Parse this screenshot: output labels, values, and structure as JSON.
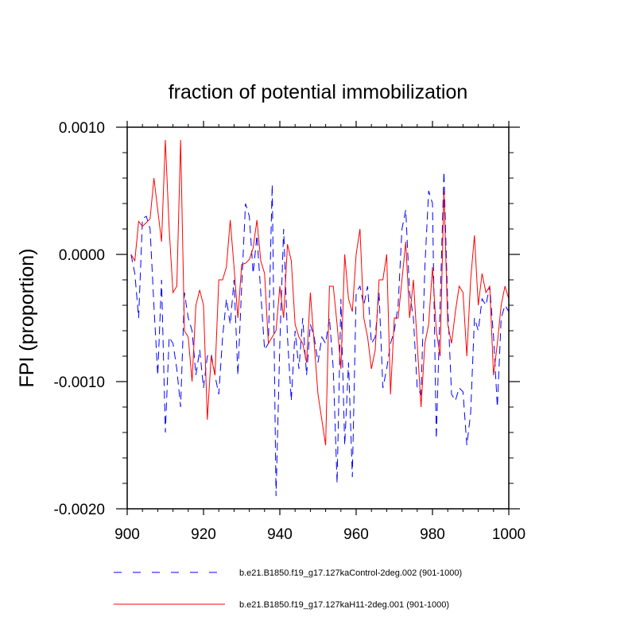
{
  "chart_data": {
    "type": "line",
    "title": "fraction of potential immobilization",
    "ylabel": "FPI  (proportion)",
    "xlabel": "",
    "xlim": [
      900,
      1000
    ],
    "ylim": [
      -0.002,
      0.001
    ],
    "x_ticks": [
      900,
      920,
      940,
      960,
      980,
      1000
    ],
    "x_tick_labels": [
      "900",
      "920",
      "940",
      "960",
      "980",
      "1000"
    ],
    "y_ticks": [
      -0.002,
      -0.001,
      0.0,
      0.001
    ],
    "y_tick_labels": [
      "-0.0020",
      "-0.0010",
      "0.0000",
      "0.0010"
    ],
    "grid": false,
    "legend_position": "bottom",
    "x": [
      901,
      902,
      903,
      904,
      905,
      906,
      907,
      908,
      909,
      910,
      911,
      912,
      913,
      914,
      915,
      916,
      917,
      918,
      919,
      920,
      921,
      922,
      923,
      924,
      925,
      926,
      927,
      928,
      929,
      930,
      931,
      932,
      933,
      934,
      935,
      936,
      937,
      938,
      939,
      940,
      941,
      942,
      943,
      944,
      945,
      946,
      947,
      948,
      949,
      950,
      951,
      952,
      953,
      954,
      955,
      956,
      957,
      958,
      959,
      960,
      961,
      962,
      963,
      964,
      965,
      966,
      967,
      968,
      969,
      970,
      971,
      972,
      973,
      974,
      975,
      976,
      977,
      978,
      979,
      980,
      981,
      982,
      983,
      984,
      985,
      986,
      987,
      988,
      989,
      990,
      991,
      992,
      993,
      994,
      995,
      996,
      997,
      998,
      999,
      1000
    ],
    "series": [
      {
        "name": "b.e21.B1850.f19_g17.127kaControl-2deg.002 (901-1000)",
        "color": "#0000ff",
        "style": "dashed",
        "values": [
          0.0,
          -0.00015,
          -0.0005,
          0.00028,
          0.0003,
          0.0002,
          -0.0004,
          -0.00095,
          -0.0002,
          -0.0014,
          -0.00065,
          -0.0007,
          -0.0009,
          -0.0012,
          -0.0003,
          -0.0005,
          -0.0006,
          -0.00095,
          -0.00075,
          -0.00105,
          -0.0008,
          -0.00078,
          -0.00095,
          -0.0011,
          -0.00065,
          -0.00035,
          -0.00055,
          -0.0002,
          -0.00095,
          -0.00025,
          0.0004,
          0.0003,
          -0.00015,
          0.00015,
          -0.0003,
          -0.00075,
          -0.0007,
          0.00055,
          -0.0019,
          -0.0007,
          0.0002,
          -0.00065,
          -0.00115,
          -0.0006,
          -0.0009,
          -0.0005,
          -0.00095,
          -0.00055,
          -0.00065,
          -0.00085,
          -0.00065,
          -0.0007,
          -0.0005,
          -0.0009,
          -0.0018,
          -0.00035,
          -0.0015,
          -0.00085,
          -0.00175,
          -0.0003,
          -0.00025,
          -0.0004,
          -0.00025,
          -0.0007,
          -0.00065,
          -0.0003,
          -0.00105,
          -0.0009,
          -0.0007,
          -0.0006,
          -0.0004,
          0.0002,
          0.00035,
          -0.0003,
          -0.0005,
          -0.00105,
          -0.0011,
          -0.0001,
          0.0005,
          0.0004,
          -0.00145,
          -0.0004,
          0.00065,
          -0.0004,
          -0.0011,
          -0.00115,
          -0.00105,
          -0.00108,
          -0.0015,
          -0.00125,
          -0.0005,
          -0.0006,
          -0.00035,
          -0.0004,
          -0.00025,
          -0.00065,
          -0.0012,
          -0.0005,
          -0.0004,
          -0.00045
        ]
      },
      {
        "name": "b.e21.B1850.f19_g17.127kaH11-2deg.001 (901-1000)",
        "color": "#ff0000",
        "style": "solid",
        "values": [
          0.0,
          -5e-05,
          0.00026,
          0.00022,
          0.00025,
          0.00028,
          0.0006,
          0.00035,
          0.0001,
          0.0009,
          0.0002,
          -0.0003,
          -0.00025,
          0.0009,
          -0.0006,
          -0.00065,
          -0.001,
          -0.0004,
          -0.00028,
          -0.0004,
          -0.0013,
          -0.0008,
          -0.00095,
          -0.0002,
          -0.0002,
          -0.0001,
          0.00027,
          -0.0001,
          -0.0005,
          -8e-05,
          -7e-05,
          -4e-05,
          5e-05,
          0.00027,
          -5e-05,
          -0.00015,
          -0.0007,
          -0.00065,
          -0.0006,
          -0.00025,
          -0.0005,
          8e-05,
          -5e-05,
          -0.00055,
          -0.00065,
          -0.0007,
          -0.00085,
          -0.0003,
          -0.0007,
          -0.0011,
          -0.0013,
          -0.0015,
          -0.00025,
          -0.00025,
          -0.00055,
          -0.0009,
          0.0,
          -0.00035,
          -0.00045,
          0.0,
          0.0002,
          -0.0005,
          -0.00065,
          -0.0009,
          -0.00075,
          -0.0002,
          -0.0002,
          0.0,
          -0.0011,
          -0.0005,
          -0.0005,
          -0.0002,
          0.0001,
          -0.0005,
          -0.0002,
          -0.0007,
          -0.0012,
          -0.0007,
          -0.00055,
          -0.0001,
          -0.0006,
          -0.0008,
          0.0005,
          -0.00055,
          -0.0007,
          -0.00045,
          -0.00025,
          -0.0003,
          -0.0008,
          -0.0002,
          0.00015,
          -0.0004,
          -0.00015,
          -0.0003,
          -0.00025,
          -0.00095,
          -0.0007,
          -0.0004,
          -0.00025,
          -0.00035
        ]
      }
    ]
  }
}
